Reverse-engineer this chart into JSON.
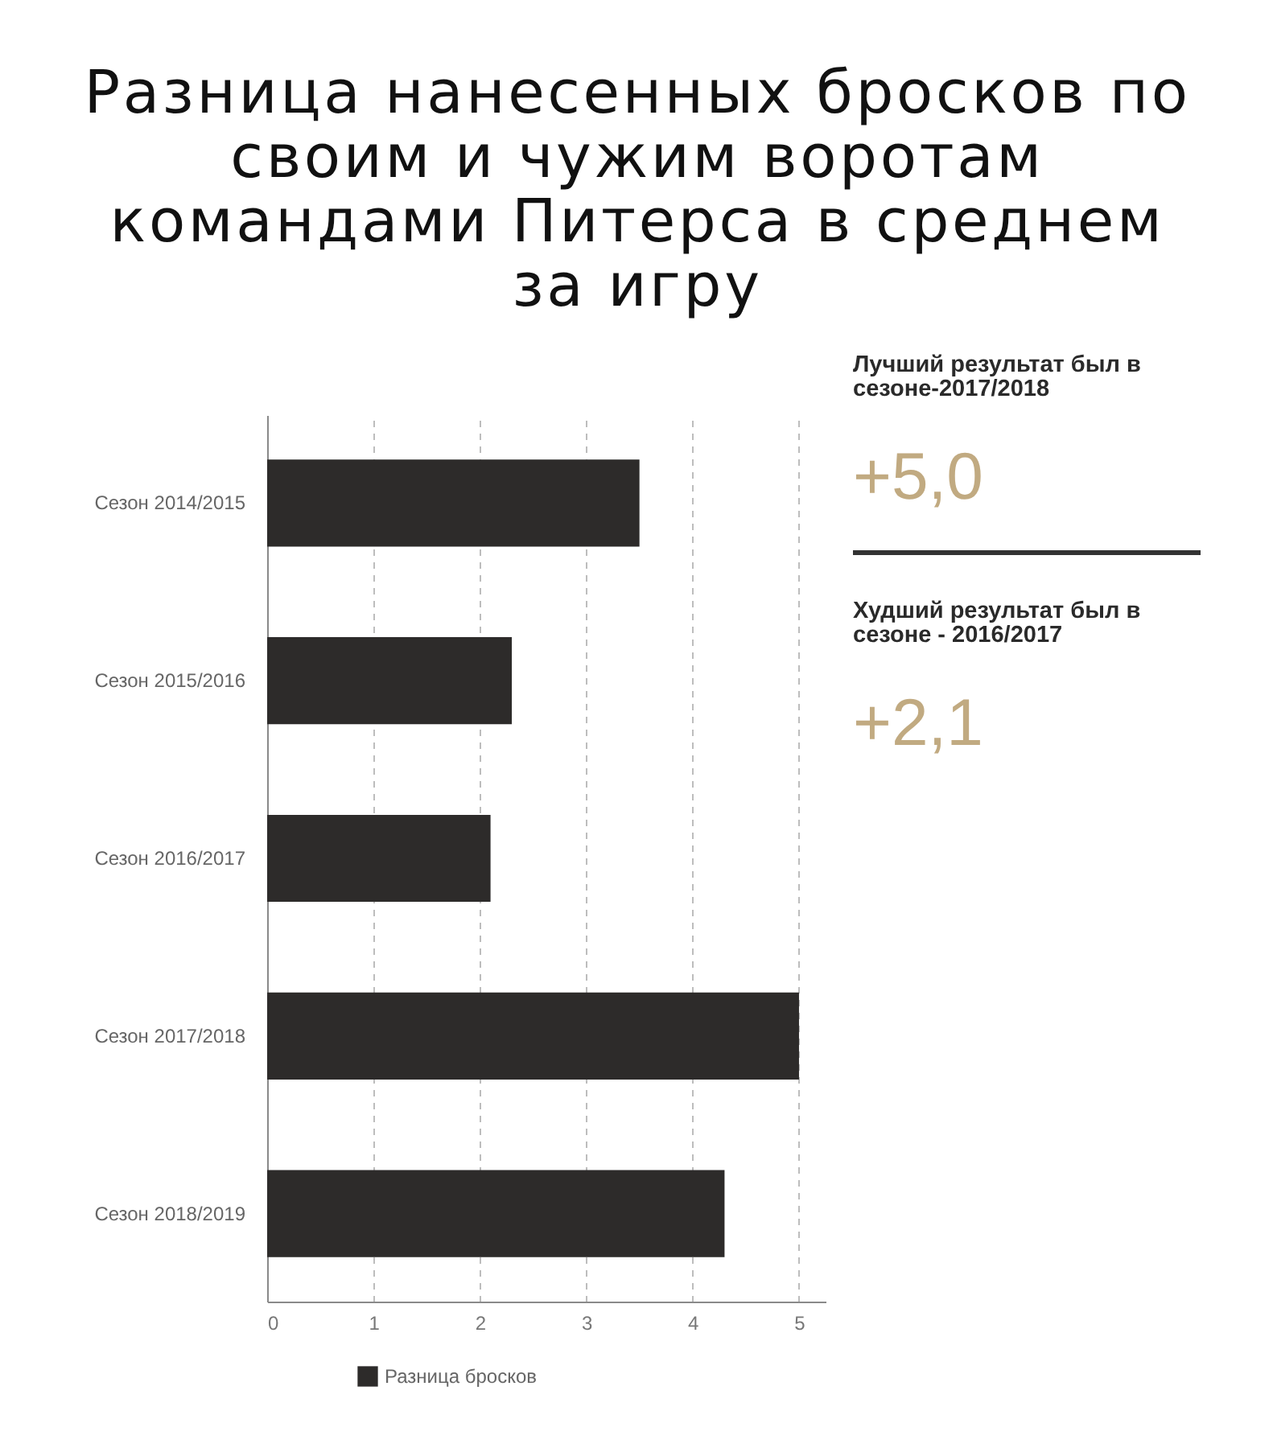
{
  "chart_data": {
    "type": "bar",
    "title": "Разница нанесенных бросков по своим и чужим воротам командами Питерса в среднем за игру",
    "orientation": "horizontal",
    "categories": [
      "Сезон 2014/2015",
      "Сезон 2015/2016",
      "Сезон 2016/2017",
      "Сезон 2017/2018",
      "Сезон 2018/2019"
    ],
    "series": [
      {
        "name": "Разница бросков",
        "color": "#2d2b2a",
        "values": [
          3.5,
          2.3,
          2.1,
          5.0,
          4.3
        ]
      }
    ],
    "xlim": [
      0,
      5.25
    ],
    "xticks": [
      0,
      1,
      2,
      3,
      4,
      5
    ],
    "grid": "x",
    "legend": "bottom",
    "annotations": [
      "Лучший результат был в сезоне-2017/2018",
      "+5,0",
      "Худший результат был в сезоне - 2016/2017",
      "+2,1"
    ]
  }
}
